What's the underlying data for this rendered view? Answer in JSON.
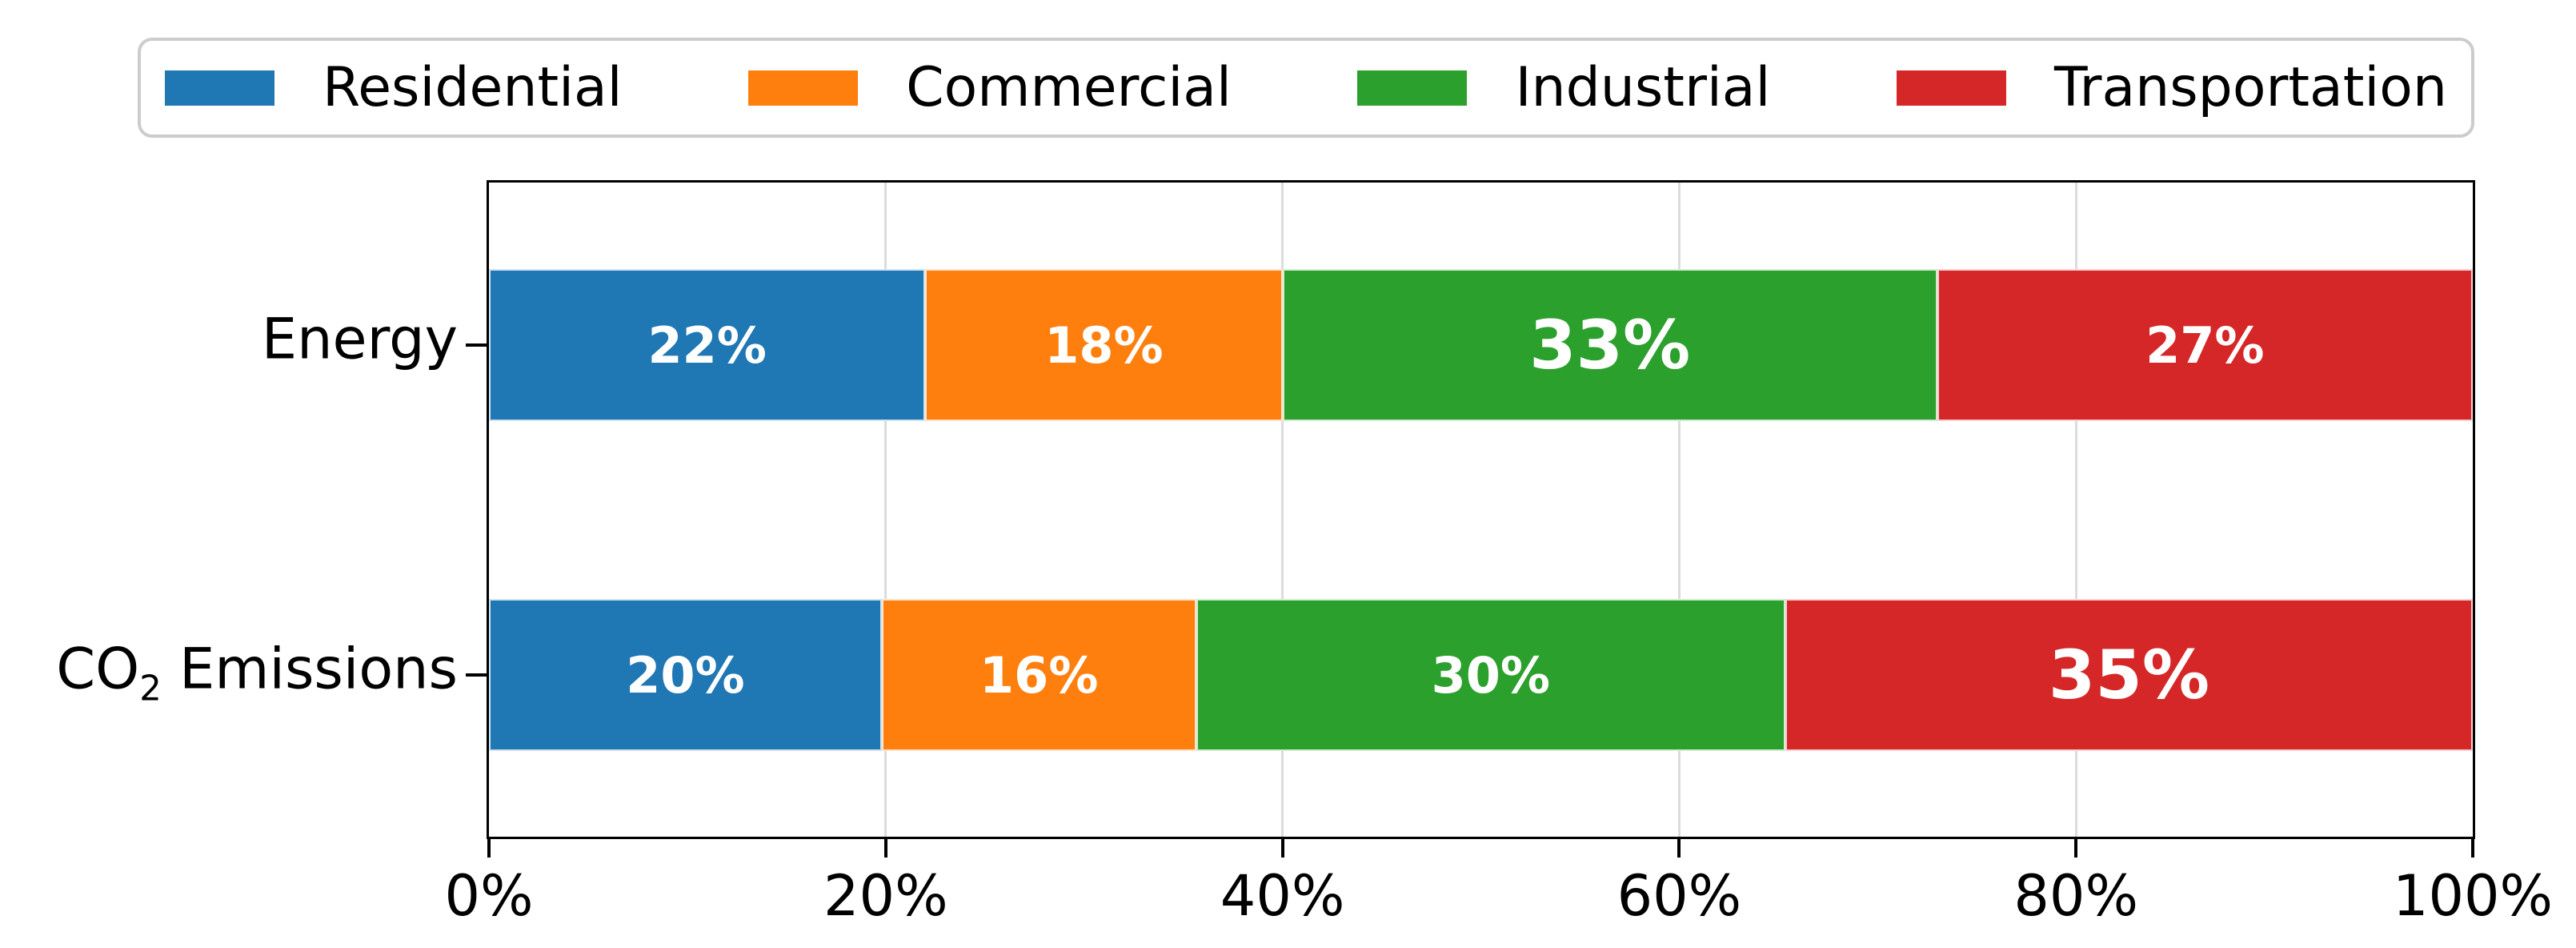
{
  "chart_data": {
    "type": "bar",
    "stacked": true,
    "orientation": "horizontal",
    "title": "",
    "xlabel": "",
    "ylabel": "",
    "categories": [
      "Energy",
      "CO₂ Emissions"
    ],
    "series": [
      {
        "name": "Residential",
        "color": "#1f77b4",
        "values": [
          22,
          20
        ]
      },
      {
        "name": "Commercial",
        "color": "#ff7f0e",
        "values": [
          18,
          16
        ]
      },
      {
        "name": "Industrial",
        "color": "#2ca02c",
        "values": [
          33,
          30
        ]
      },
      {
        "name": "Transportation",
        "color": "#d62728",
        "values": [
          27,
          35
        ]
      }
    ],
    "bar_labels": [
      [
        "22%",
        "18%",
        "33%",
        "27%"
      ],
      [
        "20%",
        "16%",
        "30%",
        "35%"
      ]
    ],
    "x_ticks": [
      "0%",
      "20%",
      "40%",
      "60%",
      "80%",
      "100%"
    ],
    "xlim": [
      0,
      100
    ],
    "grid": "vertical",
    "grid_color": "#dcdcdc",
    "spine_color": "#000000",
    "bar_label_color": "#ffffff",
    "legend_position": "top"
  },
  "category_parts": [
    {
      "pre": "Energy",
      "sub": "",
      "post": ""
    },
    {
      "pre": "CO",
      "sub": "2",
      "post": " Emissions"
    }
  ]
}
